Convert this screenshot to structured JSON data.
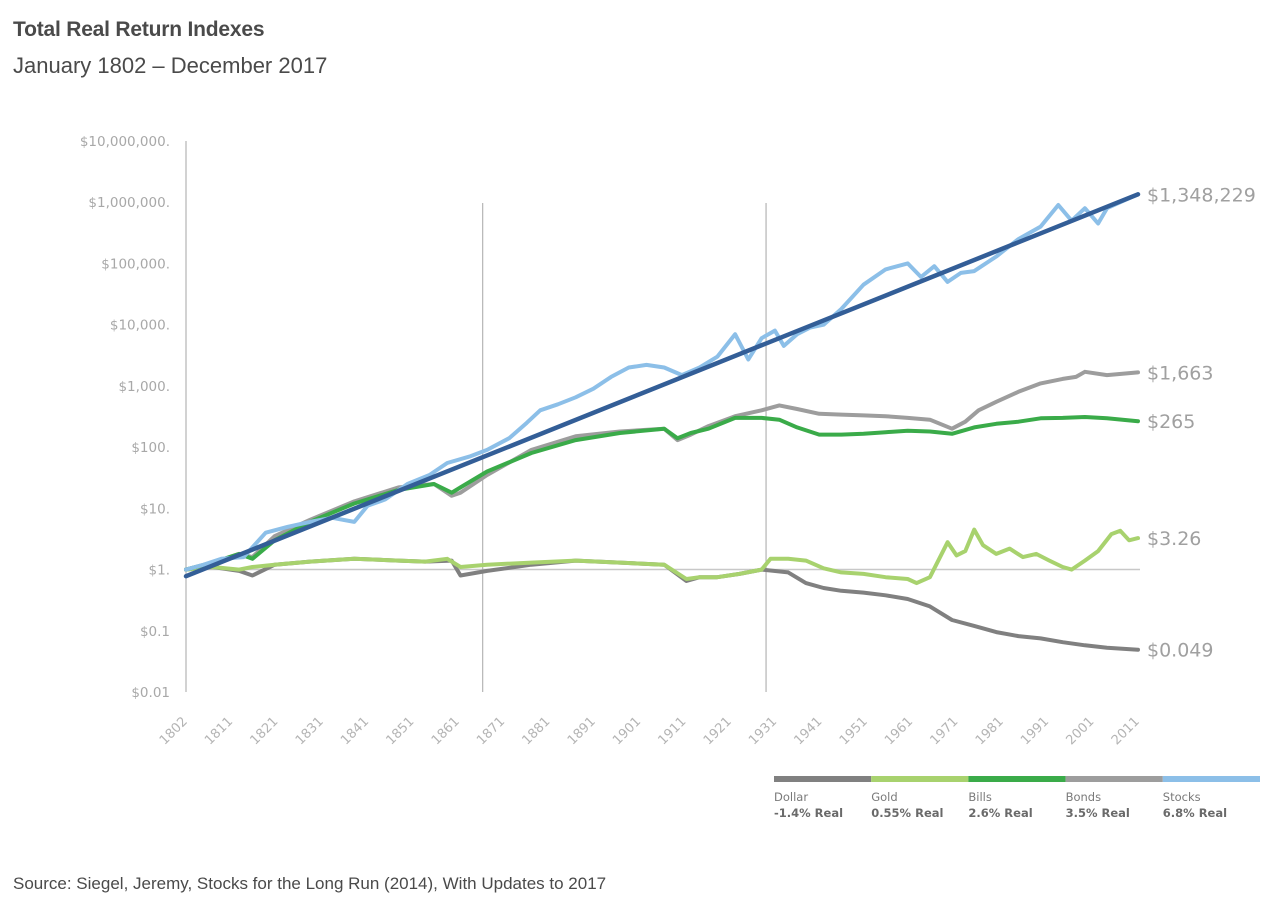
{
  "header": {
    "title": "Total Real Return Indexes",
    "subtitle": "January 1802 – December 2017"
  },
  "footer": {
    "source": "Source: Siegel, Jeremy, Stocks for the Long Run (2014), With Updates to 2017"
  },
  "chart_data": {
    "type": "line",
    "title": "Total Real Return Indexes",
    "subtitle": "January 1802 – December 2017",
    "xlabel": "",
    "ylabel": "",
    "yscale": "log",
    "ylim": [
      0.01,
      10000000
    ],
    "xlim": [
      1802,
      2017
    ],
    "grid": false,
    "reference_lines": {
      "horizontal": [
        1
      ],
      "vertical": [
        1869,
        1933
      ]
    },
    "ytick_labels": [
      "$10,000,000.",
      "$1,000,000.",
      "$100,000.",
      "$10,000.",
      "$1,000.",
      "$100.",
      "$10.",
      "$1.",
      "$0.1",
      "$0.01"
    ],
    "ytick_values": [
      10000000,
      1000000,
      100000,
      10000,
      1000,
      100,
      10,
      1,
      0.1,
      0.01
    ],
    "xtick_labels": [
      "1802",
      "1811",
      "1821",
      "1831",
      "1841",
      "1851",
      "1861",
      "1871",
      "1881",
      "1891",
      "1901",
      "1911",
      "1921",
      "1931",
      "1941",
      "1951",
      "1961",
      "1971",
      "1981",
      "1991",
      "2001",
      "2011"
    ],
    "legend_position": "bottom-right",
    "series": [
      {
        "name": "Dollar",
        "rate": "-1.4% Real",
        "color": "#808080",
        "end_label": "$0.049",
        "x": [
          1802,
          1808,
          1814,
          1817,
          1822,
          1830,
          1840,
          1850,
          1856,
          1862,
          1864,
          1870,
          1880,
          1890,
          1900,
          1910,
          1915,
          1918,
          1922,
          1927,
          1932,
          1938,
          1942,
          1946,
          1950,
          1955,
          1960,
          1965,
          1970,
          1975,
          1980,
          1985,
          1990,
          1995,
          2000,
          2005,
          2010,
          2017
        ],
        "values": [
          1.0,
          1.1,
          0.95,
          0.8,
          1.2,
          1.35,
          1.5,
          1.4,
          1.35,
          1.4,
          0.8,
          0.95,
          1.2,
          1.4,
          1.3,
          1.2,
          0.65,
          0.75,
          0.75,
          0.85,
          1.0,
          0.9,
          0.6,
          0.5,
          0.45,
          0.42,
          0.38,
          0.33,
          0.25,
          0.15,
          0.12,
          0.095,
          0.082,
          0.075,
          0.065,
          0.058,
          0.053,
          0.049
        ]
      },
      {
        "name": "Gold",
        "rate": "0.55% Real",
        "color": "#a8d26e",
        "end_label": "$3.26",
        "x": [
          1802,
          1808,
          1814,
          1817,
          1822,
          1830,
          1840,
          1850,
          1856,
          1861,
          1864,
          1870,
          1880,
          1890,
          1900,
          1910,
          1915,
          1918,
          1922,
          1927,
          1932,
          1934,
          1938,
          1942,
          1946,
          1950,
          1955,
          1960,
          1965,
          1967,
          1970,
          1974,
          1976,
          1978,
          1980,
          1982,
          1985,
          1988,
          1991,
          1994,
          1997,
          2000,
          2002,
          2005,
          2008,
          2011,
          2013,
          2015,
          2017
        ],
        "values": [
          1.0,
          1.1,
          1.0,
          1.1,
          1.2,
          1.35,
          1.5,
          1.4,
          1.35,
          1.5,
          1.1,
          1.2,
          1.3,
          1.4,
          1.3,
          1.2,
          0.7,
          0.75,
          0.75,
          0.85,
          1.0,
          1.5,
          1.5,
          1.4,
          1.05,
          0.9,
          0.85,
          0.75,
          0.7,
          0.6,
          0.75,
          2.8,
          1.7,
          2.0,
          4.5,
          2.5,
          1.8,
          2.2,
          1.6,
          1.8,
          1.4,
          1.1,
          1.0,
          1.4,
          2.0,
          3.8,
          4.3,
          3.0,
          3.26
        ]
      },
      {
        "name": "Bills",
        "rate": "2.6% Real",
        "color": "#3aab49",
        "end_label": "$265",
        "x": [
          1802,
          1808,
          1814,
          1817,
          1822,
          1830,
          1840,
          1850,
          1858,
          1862,
          1864,
          1870,
          1880,
          1890,
          1900,
          1910,
          1913,
          1916,
          1920,
          1926,
          1932,
          1936,
          1940,
          1945,
          1950,
          1955,
          1960,
          1965,
          1970,
          1975,
          1980,
          1985,
          1990,
          1995,
          2000,
          2005,
          2010,
          2017
        ],
        "values": [
          1.0,
          1.3,
          1.8,
          1.5,
          3.0,
          6.0,
          12,
          20,
          25,
          18,
          22,
          40,
          80,
          130,
          170,
          200,
          140,
          170,
          200,
          300,
          300,
          280,
          210,
          160,
          160,
          165,
          175,
          185,
          180,
          165,
          210,
          240,
          260,
          295,
          300,
          310,
          295,
          265
        ]
      },
      {
        "name": "Bonds",
        "rate": "3.5% Real",
        "color": "#9d9d9d",
        "end_label": "$1,663",
        "x": [
          1802,
          1808,
          1814,
          1817,
          1822,
          1830,
          1840,
          1850,
          1858,
          1862,
          1864,
          1870,
          1880,
          1890,
          1900,
          1910,
          1913,
          1916,
          1920,
          1926,
          1932,
          1936,
          1940,
          1945,
          1950,
          1955,
          1960,
          1965,
          1970,
          1975,
          1978,
          1981,
          1985,
          1990,
          1995,
          2000,
          2003,
          2005,
          2010,
          2017
        ],
        "values": [
          1.0,
          1.3,
          1.8,
          1.6,
          3.5,
          6.5,
          13,
          22,
          25,
          16,
          18,
          35,
          90,
          150,
          180,
          200,
          130,
          160,
          220,
          320,
          400,
          480,
          420,
          350,
          340,
          330,
          320,
          300,
          280,
          200,
          260,
          400,
          550,
          800,
          1100,
          1300,
          1400,
          1700,
          1500,
          1663
        ]
      },
      {
        "name": "Stocks",
        "rate": "6.8% Real",
        "color": "#8cbfe8",
        "end_label": "$1,348,229",
        "x": [
          1802,
          1806,
          1810,
          1815,
          1820,
          1825,
          1830,
          1835,
          1840,
          1843,
          1847,
          1852,
          1857,
          1861,
          1866,
          1870,
          1875,
          1879,
          1882,
          1886,
          1890,
          1894,
          1898,
          1902,
          1906,
          1910,
          1914,
          1918,
          1922,
          1926,
          1929,
          1932,
          1935,
          1937,
          1940,
          1943,
          1946,
          1950,
          1955,
          1960,
          1965,
          1968,
          1971,
          1974,
          1977,
          1980,
          1985,
          1990,
          1995,
          1999,
          2002,
          2005,
          2008,
          2010,
          2013,
          2017
        ],
        "values": [
          1.0,
          1.2,
          1.5,
          1.6,
          4.0,
          5.0,
          6.0,
          7.0,
          6.0,
          11,
          14,
          25,
          35,
          55,
          70,
          90,
          140,
          250,
          400,
          500,
          650,
          900,
          1400,
          2000,
          2200,
          2000,
          1500,
          2000,
          3000,
          7000,
          2700,
          6000,
          8000,
          4500,
          7000,
          9000,
          10000,
          18000,
          45000,
          80000,
          100000,
          60000,
          90000,
          50000,
          70000,
          75000,
          130000,
          250000,
          400000,
          900000,
          500000,
          800000,
          450000,
          800000,
          1000000,
          1348229
        ]
      },
      {
        "name": "Trend",
        "color": "#335e97",
        "x": [
          1802,
          2017
        ],
        "values": [
          0.78,
          1348229
        ]
      }
    ]
  }
}
